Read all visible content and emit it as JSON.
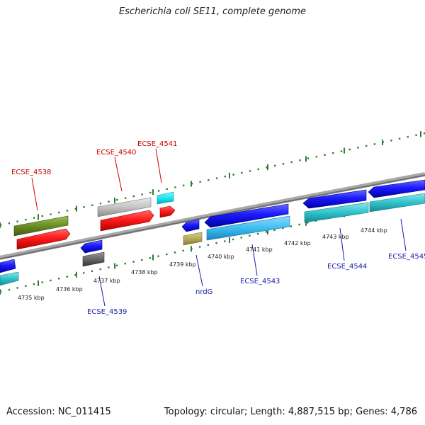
{
  "title": "Escherichia coli SE11, complete genome",
  "footer": {
    "accession": "Accession: NC_011415",
    "topology": "Topology: circular; Length: 4,887,515 bp; Genes: 4,786"
  },
  "tick_labels": [
    "4735 kbp",
    "4736 kbp",
    "4737 kbp",
    "4738 kbp",
    "4739 kbp",
    "4740 kbp",
    "4741 kbp",
    "4742 kbp",
    "4743 kbp",
    "4744 kbp"
  ],
  "gene_labels_top": [
    "ECSE_4538",
    "ECSE_4540",
    "ECSE_4541"
  ],
  "gene_labels_bottom": [
    "ECSE_4539",
    "nrdG",
    "ECSE_4543",
    "ECSE_4544",
    "ECSE_4545"
  ],
  "colors": {
    "forward_cds": "#ff1a1a",
    "reverse_cds": "#1a1aff",
    "forward_aux": "#6b8e23",
    "reverse_aux": "#33c9d6",
    "backbone": "#888888",
    "ticks": "#2e7d32",
    "label_top": "#cc0000",
    "label_bottom": "#1a1aaa"
  }
}
